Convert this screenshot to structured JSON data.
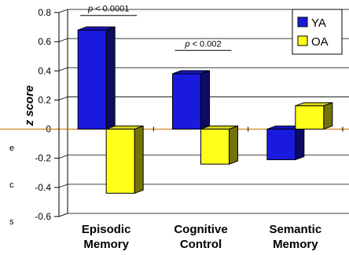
{
  "chart_data": {
    "type": "bar",
    "categories": [
      [
        "Episodic",
        "Memory"
      ],
      [
        "Cognitive",
        "Control"
      ],
      [
        "Semantic",
        "Memory"
      ]
    ],
    "series": [
      {
        "name": "YA",
        "color": "#1a1adf",
        "values": [
          0.68,
          0.38,
          -0.21
        ]
      },
      {
        "name": "OA",
        "color": "#ffff1a",
        "values": [
          -0.44,
          -0.24,
          0.16
        ]
      }
    ],
    "ylabel": "z score",
    "ylim": [
      -0.6,
      0.8
    ],
    "yticks": [
      "0.8",
      "0.6",
      "0.4",
      "0.2",
      "0",
      "-0.2",
      "-0.4",
      "-0.6"
    ],
    "tick_values": [
      0.8,
      0.6,
      0.4,
      0.2,
      0,
      -0.2,
      -0.4,
      -0.6
    ],
    "grid": true,
    "legend_position": "top-right",
    "annotations": [
      {
        "category_index": 0,
        "text": "p < 0.0001",
        "value": 0.78
      },
      {
        "category_index": 1,
        "text": "p < 0.002",
        "value": 0.54
      }
    ],
    "edge_text": [
      "e",
      "c",
      "s"
    ]
  }
}
